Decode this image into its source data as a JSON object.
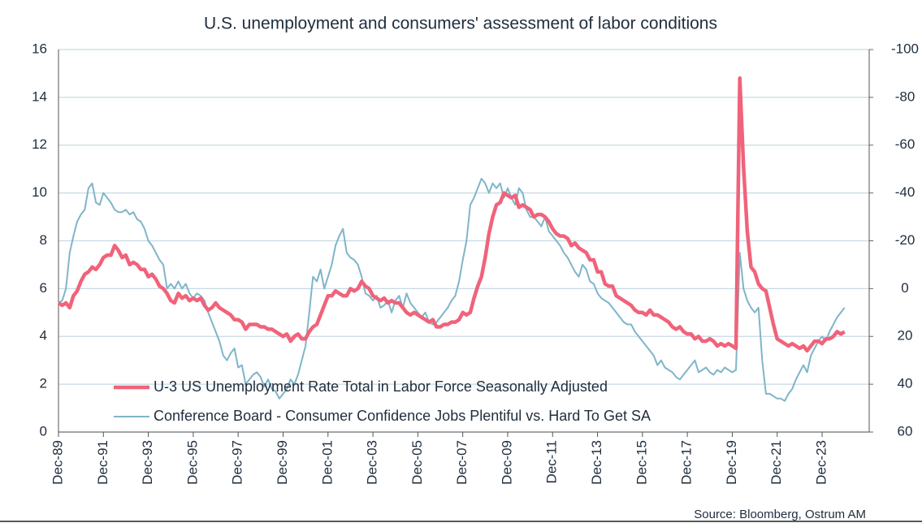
{
  "chart_data": {
    "type": "line",
    "title": "U.S. unemployment and consumers' assessment of labor conditions",
    "source": "Source: Bloomberg, Ostrum AM",
    "x": [
      "Dec-89",
      "Feb-90",
      "Apr-90",
      "Jun-90",
      "Aug-90",
      "Oct-90",
      "Dec-90",
      "Feb-91",
      "Apr-91",
      "Jun-91",
      "Aug-91",
      "Oct-91",
      "Dec-91",
      "Feb-92",
      "Apr-92",
      "Jun-92",
      "Aug-92",
      "Oct-92",
      "Dec-92",
      "Feb-93",
      "Apr-93",
      "Jun-93",
      "Aug-93",
      "Oct-93",
      "Dec-93",
      "Feb-94",
      "Apr-94",
      "Jun-94",
      "Aug-94",
      "Oct-94",
      "Dec-94",
      "Feb-95",
      "Apr-95",
      "Jun-95",
      "Aug-95",
      "Oct-95",
      "Dec-95",
      "Feb-96",
      "Apr-96",
      "Jun-96",
      "Aug-96",
      "Oct-96",
      "Dec-96",
      "Feb-97",
      "Apr-97",
      "Jun-97",
      "Aug-97",
      "Oct-97",
      "Dec-97",
      "Feb-98",
      "Apr-98",
      "Jun-98",
      "Aug-98",
      "Oct-98",
      "Dec-98",
      "Feb-99",
      "Apr-99",
      "Jun-99",
      "Aug-99",
      "Oct-99",
      "Dec-99",
      "Feb-00",
      "Apr-00",
      "Jun-00",
      "Aug-00",
      "Oct-00",
      "Dec-00",
      "Feb-01",
      "Apr-01",
      "Jun-01",
      "Aug-01",
      "Oct-01",
      "Dec-01",
      "Feb-02",
      "Apr-02",
      "Jun-02",
      "Aug-02",
      "Oct-02",
      "Dec-02",
      "Feb-03",
      "Apr-03",
      "Jun-03",
      "Aug-03",
      "Oct-03",
      "Dec-03",
      "Feb-04",
      "Apr-04",
      "Jun-04",
      "Aug-04",
      "Oct-04",
      "Dec-04",
      "Feb-05",
      "Apr-05",
      "Jun-05",
      "Aug-05",
      "Oct-05",
      "Dec-05",
      "Feb-06",
      "Apr-06",
      "Jun-06",
      "Aug-06",
      "Oct-06",
      "Dec-06",
      "Feb-07",
      "Apr-07",
      "Jun-07",
      "Aug-07",
      "Oct-07",
      "Dec-07",
      "Feb-08",
      "Apr-08",
      "Jun-08",
      "Aug-08",
      "Oct-08",
      "Dec-08",
      "Feb-09",
      "Apr-09",
      "Jun-09",
      "Aug-09",
      "Oct-09",
      "Dec-09",
      "Feb-10",
      "Apr-10",
      "Jun-10",
      "Aug-10",
      "Oct-10",
      "Dec-10",
      "Feb-11",
      "Apr-11",
      "Jun-11",
      "Aug-11",
      "Oct-11",
      "Dec-11",
      "Feb-12",
      "Apr-12",
      "Jun-12",
      "Aug-12",
      "Oct-12",
      "Dec-12",
      "Feb-13",
      "Apr-13",
      "Jun-13",
      "Aug-13",
      "Oct-13",
      "Dec-13",
      "Feb-14",
      "Apr-14",
      "Jun-14",
      "Aug-14",
      "Oct-14",
      "Dec-14",
      "Feb-15",
      "Apr-15",
      "Jun-15",
      "Aug-15",
      "Oct-15",
      "Dec-15",
      "Feb-16",
      "Apr-16",
      "Jun-16",
      "Aug-16",
      "Oct-16",
      "Dec-16",
      "Feb-17",
      "Apr-17",
      "Jun-17",
      "Aug-17",
      "Oct-17",
      "Dec-17",
      "Feb-18",
      "Apr-18",
      "Jun-18",
      "Aug-18",
      "Oct-18",
      "Dec-18",
      "Feb-19",
      "Apr-19",
      "Jun-19",
      "Aug-19",
      "Oct-19",
      "Dec-19",
      "Feb-20",
      "Apr-20",
      "Jun-20",
      "Aug-20",
      "Oct-20",
      "Dec-20",
      "Feb-21",
      "Apr-21",
      "Jun-21",
      "Aug-21",
      "Oct-21",
      "Dec-21",
      "Feb-22",
      "Apr-22",
      "Jun-22",
      "Aug-22",
      "Oct-22",
      "Dec-22",
      "Feb-23",
      "Apr-23",
      "Jun-23",
      "Aug-23",
      "Oct-23",
      "Dec-23",
      "Feb-24",
      "Apr-24",
      "Jun-24",
      "Aug-24",
      "Oct-24",
      "Dec-24"
    ],
    "xticks": [
      "Dec-89",
      "Dec-91",
      "Dec-93",
      "Dec-95",
      "Dec-97",
      "Dec-99",
      "Dec-01",
      "Dec-03",
      "Dec-05",
      "Dec-07",
      "Dec-09",
      "Dec-11",
      "Dec-13",
      "Dec-15",
      "Dec-17",
      "Dec-19",
      "Dec-21",
      "Dec-23"
    ],
    "ylim": [
      0,
      16
    ],
    "yticks": [
      0,
      2,
      4,
      6,
      8,
      10,
      12,
      14,
      16
    ],
    "y2lim": [
      60,
      -100
    ],
    "y2ticks": [
      60,
      40,
      20,
      0,
      -20,
      -40,
      -60,
      -80,
      -100
    ],
    "grid": true,
    "legend": "lower-left",
    "series": [
      {
        "name": "U-3 US Unemployment Rate Total in Labor Force Seasonally Adjusted",
        "color": "#f0637a",
        "axis": "y",
        "values": [
          5.4,
          5.3,
          5.4,
          5.2,
          5.7,
          5.9,
          6.3,
          6.6,
          6.7,
          6.9,
          6.8,
          7.0,
          7.3,
          7.4,
          7.4,
          7.8,
          7.6,
          7.3,
          7.4,
          7.0,
          7.1,
          7.0,
          6.8,
          6.8,
          6.5,
          6.6,
          6.4,
          6.1,
          6.0,
          5.8,
          5.5,
          5.4,
          5.8,
          5.6,
          5.7,
          5.5,
          5.6,
          5.5,
          5.6,
          5.3,
          5.1,
          5.2,
          5.4,
          5.2,
          5.1,
          5.0,
          4.9,
          4.7,
          4.7,
          4.6,
          4.3,
          4.5,
          4.5,
          4.5,
          4.4,
          4.4,
          4.3,
          4.3,
          4.2,
          4.1,
          4.0,
          4.1,
          3.8,
          4.0,
          4.1,
          3.9,
          3.9,
          4.2,
          4.4,
          4.5,
          4.9,
          5.3,
          5.7,
          5.7,
          5.9,
          5.8,
          5.7,
          5.7,
          6.0,
          5.9,
          6.0,
          6.3,
          6.1,
          6.0,
          5.7,
          5.6,
          5.5,
          5.6,
          5.4,
          5.5,
          5.4,
          5.4,
          5.2,
          5.0,
          4.9,
          5.0,
          4.9,
          4.8,
          4.7,
          4.6,
          4.7,
          4.4,
          4.4,
          4.5,
          4.5,
          4.6,
          4.6,
          4.7,
          5.0,
          4.9,
          5.0,
          5.6,
          6.1,
          6.5,
          7.3,
          8.3,
          9.0,
          9.5,
          9.6,
          10.0,
          9.9,
          9.8,
          9.9,
          9.4,
          9.5,
          9.4,
          9.3,
          9.0,
          9.1,
          9.1,
          9.0,
          8.8,
          8.5,
          8.3,
          8.2,
          8.2,
          8.1,
          7.8,
          7.9,
          7.7,
          7.6,
          7.5,
          7.2,
          7.2,
          6.7,
          6.7,
          6.2,
          6.1,
          6.1,
          5.7,
          5.6,
          5.5,
          5.4,
          5.3,
          5.1,
          5.0,
          5.0,
          4.9,
          5.1,
          4.9,
          4.9,
          4.8,
          4.7,
          4.6,
          4.4,
          4.3,
          4.4,
          4.2,
          4.1,
          4.1,
          3.9,
          4.0,
          3.8,
          3.8,
          3.9,
          3.8,
          3.6,
          3.7,
          3.6,
          3.7,
          3.6,
          3.5,
          14.8,
          11.1,
          8.4,
          6.9,
          6.7,
          6.2,
          6.0,
          5.9,
          5.2,
          4.5,
          3.9,
          3.8,
          3.7,
          3.6,
          3.7,
          3.6,
          3.5,
          3.6,
          3.4,
          3.6,
          3.8,
          3.8,
          3.7,
          3.9,
          3.9,
          4.0,
          4.2,
          4.1,
          4.2
        ]
      },
      {
        "name": "Conference Board - Consumer Confidence Jobs Plentiful vs. Hard To Get SA",
        "color": "#7fb5c9",
        "axis": "y2",
        "values": [
          6,
          5,
          0,
          -15,
          -22,
          -28,
          -31,
          -33,
          -42,
          -44,
          -36,
          -35,
          -40,
          -38,
          -36,
          -33,
          -32,
          -32,
          -33,
          -31,
          -32,
          -29,
          -28,
          -25,
          -20,
          -18,
          -15,
          -12,
          -10,
          0,
          -2,
          0,
          -3,
          0,
          -2,
          2,
          4,
          2,
          3,
          5,
          10,
          14,
          18,
          22,
          28,
          30,
          27,
          25,
          33,
          32,
          40,
          38,
          36,
          35,
          37,
          41,
          38,
          42,
          43,
          46,
          44,
          42,
          38,
          40,
          36,
          30,
          24,
          10,
          -5,
          -3,
          -8,
          0,
          -5,
          -10,
          -18,
          -22,
          -25,
          -15,
          -13,
          -12,
          -10,
          -5,
          2,
          3,
          5,
          3,
          8,
          7,
          5,
          10,
          5,
          3,
          8,
          2,
          6,
          8,
          10,
          12,
          10,
          14,
          15,
          14,
          12,
          10,
          8,
          5,
          3,
          -3,
          -12,
          -20,
          -35,
          -38,
          -42,
          -46,
          -44,
          -40,
          -44,
          -42,
          -44,
          -38,
          -42,
          -38,
          -35,
          -42,
          -40,
          -33,
          -30,
          -30,
          -28,
          -26,
          -30,
          -24,
          -22,
          -20,
          -18,
          -15,
          -13,
          -10,
          -7,
          -5,
          -10,
          -8,
          -3,
          -2,
          2,
          4,
          5,
          6,
          8,
          10,
          12,
          14,
          15,
          15,
          18,
          20,
          22,
          24,
          26,
          28,
          32,
          30,
          33,
          34,
          35,
          37,
          38,
          36,
          34,
          32,
          30,
          35,
          34,
          33,
          35,
          36,
          34,
          35,
          33,
          34,
          35,
          34,
          -15,
          0,
          5,
          8,
          10,
          8,
          30,
          44,
          44,
          45,
          46,
          46,
          47,
          44,
          42,
          38,
          35,
          32,
          35,
          28,
          25,
          22,
          20,
          22,
          18,
          15,
          12,
          10,
          8
        ]
      }
    ]
  }
}
